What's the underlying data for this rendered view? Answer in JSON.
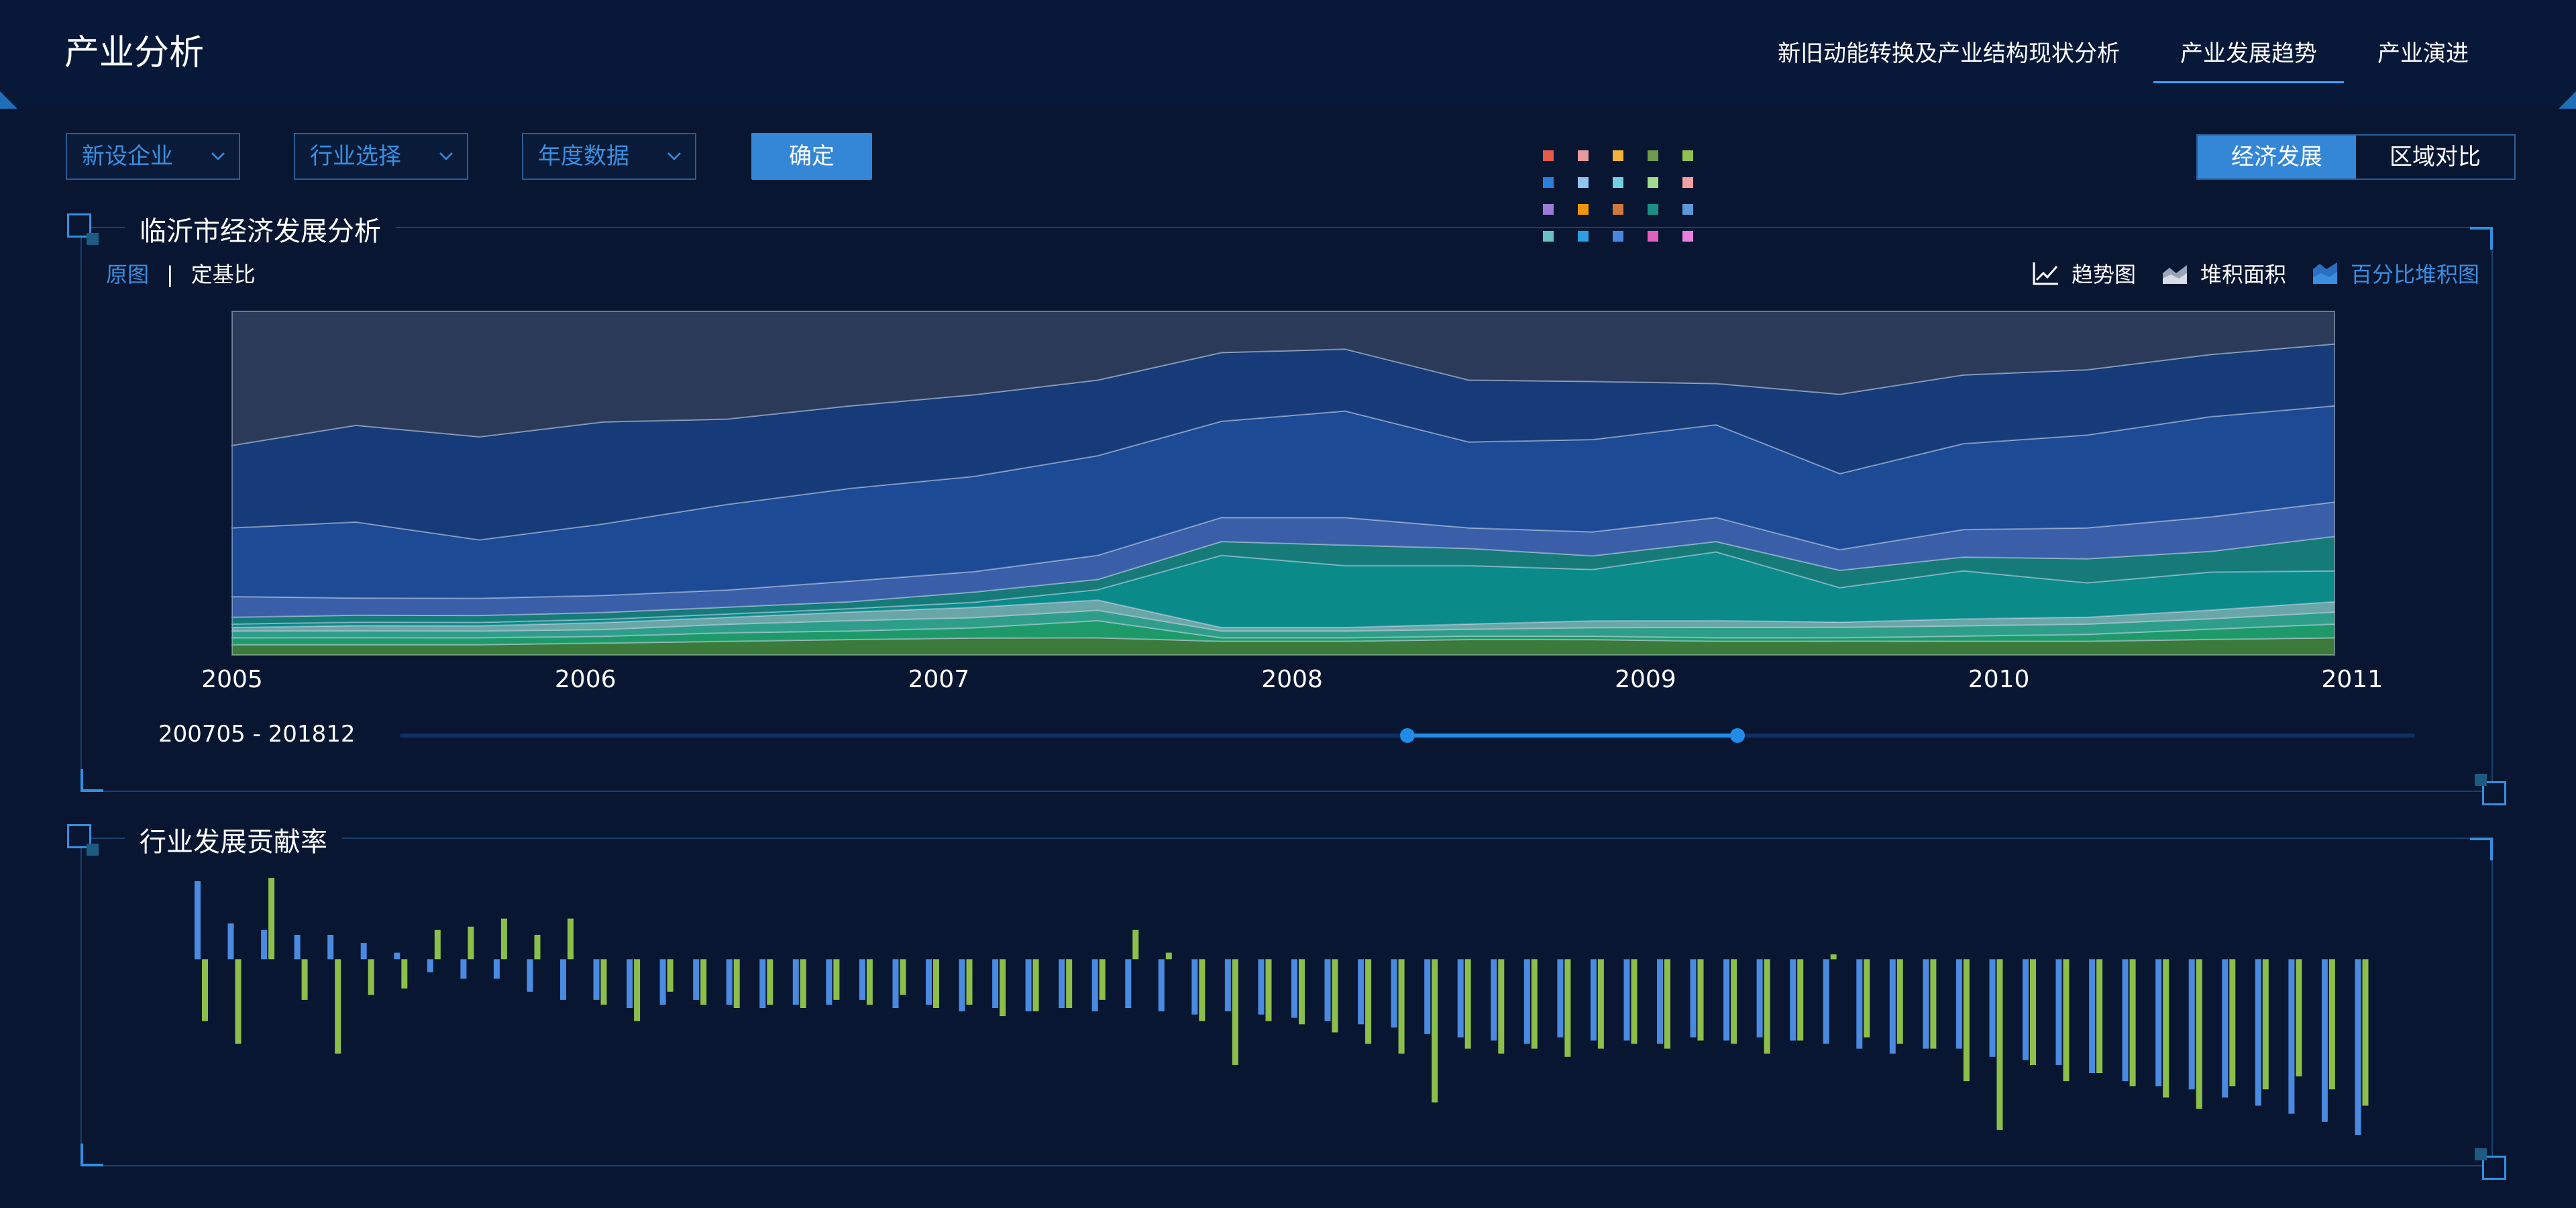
{
  "header": {
    "title": "产业分析",
    "nav": [
      "新旧动能转换及产业结构现状分析",
      "产业发展趋势",
      "产业演进"
    ],
    "nav_active_index": 1
  },
  "filters": {
    "select1": "新设企业",
    "select2": "行业选择",
    "select3": "年度数据",
    "confirm_label": "确定"
  },
  "mode_switch": {
    "options": [
      "经济发展",
      "区域对比"
    ],
    "active_index": 0
  },
  "legend_colors": [
    "#e15a4a",
    "#e79a9a",
    "#f2b33a",
    "#6f9a4a",
    "#8fc050",
    "#2a7fd8",
    "#8ec4f0",
    "#74d0e0",
    "#9fdc8e",
    "#f0a0a0",
    "#9c7ad8",
    "#f0960a",
    "#d07a3a",
    "#1a8f86",
    "#5a9ad8",
    "#6bc0c4",
    "#2aa0e0",
    "#4a86e0",
    "#e060c0",
    "#e880e0"
  ],
  "panel1": {
    "title": "临沂市经济发展分析",
    "view_on": "原图",
    "view_off": "定基比",
    "chart_types": [
      "趋势图",
      "堆积面积",
      "百分比堆积图"
    ],
    "chart_type_active": 2,
    "range_label": "200705 - 201812"
  },
  "panel2": {
    "title": "行业发展贡献率"
  },
  "chart_data": [
    {
      "type": "area",
      "stacked": "percent",
      "x_ticks": [
        "2005",
        "2006",
        "2007",
        "2008",
        "2009",
        "2010",
        "2011"
      ],
      "x": [
        2005,
        2005.35,
        2005.7,
        2006.05,
        2006.4,
        2006.75,
        2007.1,
        2007.45,
        2007.8,
        2008.15,
        2008.5,
        2008.85,
        2009.2,
        2009.55,
        2009.9,
        2010.25,
        2010.6,
        2010.95
      ],
      "series": [
        {
          "color": "#3b7a3a",
          "values": [
            3,
            3,
            3,
            3.5,
            4,
            4.5,
            5,
            5,
            4,
            4,
            4.5,
            4.5,
            4,
            4,
            4,
            4,
            4.5,
            5
          ]
        },
        {
          "color": "#1e9a6a",
          "values": [
            2,
            2,
            2,
            2,
            2.5,
            2.5,
            3,
            5,
            1,
            1,
            1,
            1,
            1,
            1,
            1.5,
            2,
            3,
            4
          ]
        },
        {
          "color": "#2e9e8a",
          "values": [
            2,
            2,
            2,
            2,
            2.5,
            3,
            3,
            3,
            2,
            2,
            2,
            2.5,
            3,
            3,
            3,
            3,
            3,
            3.5
          ]
        },
        {
          "color": "#6aa6a8",
          "values": [
            1,
            1.5,
            1.5,
            2,
            2,
            2.5,
            3,
            3,
            1,
            1,
            1.5,
            2,
            2,
            1.5,
            2,
            2,
            2.5,
            3
          ]
        },
        {
          "color": "#0b8a8a",
          "values": [
            1,
            1,
            1,
            1,
            1,
            1,
            1.5,
            3,
            21,
            18,
            17,
            15,
            20,
            10,
            14,
            10,
            11,
            9
          ]
        },
        {
          "color": "#167a78",
          "values": [
            2,
            2,
            2,
            2,
            2,
            2,
            3,
            3,
            4,
            6,
            5,
            4,
            3,
            5,
            4,
            7,
            6,
            10
          ]
        },
        {
          "color": "#3a5fa8",
          "values": [
            6,
            5,
            5,
            5,
            5,
            6,
            6,
            7,
            7,
            8,
            6,
            7,
            7,
            6,
            8,
            9,
            10,
            10
          ]
        },
        {
          "color": "#1d4a94",
          "values": [
            20,
            22,
            17,
            21,
            25,
            27,
            28,
            29,
            28,
            31,
            25,
            27,
            27,
            22,
            25,
            27,
            29,
            28
          ]
        },
        {
          "color": "#173a78",
          "values": [
            24,
            28,
            30,
            30,
            25,
            24,
            24,
            22,
            20,
            18,
            18,
            17,
            12,
            23,
            20,
            19,
            18,
            18
          ]
        },
        {
          "color": "#2a3a58",
          "values": [
            39,
            33,
            36.5,
            32.5,
            31.5,
            27.5,
            24.5,
            20,
            12,
            11,
            20,
            20.5,
            21,
            24,
            18.5,
            17,
            12.5,
            9.5
          ]
        }
      ],
      "ylim": [
        0,
        100
      ]
    },
    {
      "type": "bar",
      "series": [
        {
          "name": "",
          "color": "#4a8ae0",
          "values": [
            48,
            22,
            18,
            15,
            15,
            10,
            4,
            -8,
            -12,
            -12,
            -20,
            -25,
            -25,
            -30,
            -28,
            -25,
            -28,
            -30,
            -28,
            -28,
            -25,
            -30,
            -28,
            -32,
            -30,
            -32,
            -30,
            -32,
            -30,
            -32,
            -34,
            -32,
            -34,
            -36,
            -38,
            -40,
            -42,
            -46,
            -48,
            -50,
            -52,
            -48,
            -50,
            -50,
            -52,
            -48,
            -50,
            -48,
            -50,
            -52,
            -55,
            -58,
            -55,
            -55,
            -60,
            -62,
            -65,
            -70,
            -75,
            -78,
            -80,
            -85,
            -90,
            -95,
            -100,
            -108
          ]
        },
        {
          "name": "",
          "color": "#8cbf4a",
          "values": [
            -38,
            -52,
            50,
            -25,
            -58,
            -22,
            -18,
            18,
            20,
            25,
            15,
            25,
            -28,
            -38,
            -20,
            -28,
            -30,
            -28,
            -30,
            -25,
            -28,
            -22,
            -30,
            -28,
            -35,
            -32,
            -30,
            -25,
            18,
            4,
            -38,
            -65,
            -38,
            -40,
            -45,
            -52,
            -58,
            -88,
            -55,
            -58,
            -55,
            -60,
            -55,
            -52,
            -55,
            -50,
            -52,
            -58,
            -50,
            3,
            -48,
            -52,
            -55,
            -75,
            -105,
            -65,
            -75,
            -70,
            -78,
            -85,
            -92,
            -78,
            -80,
            -72,
            -80,
            -90
          ]
        }
      ],
      "ylim": [
        -110,
        55
      ]
    }
  ]
}
